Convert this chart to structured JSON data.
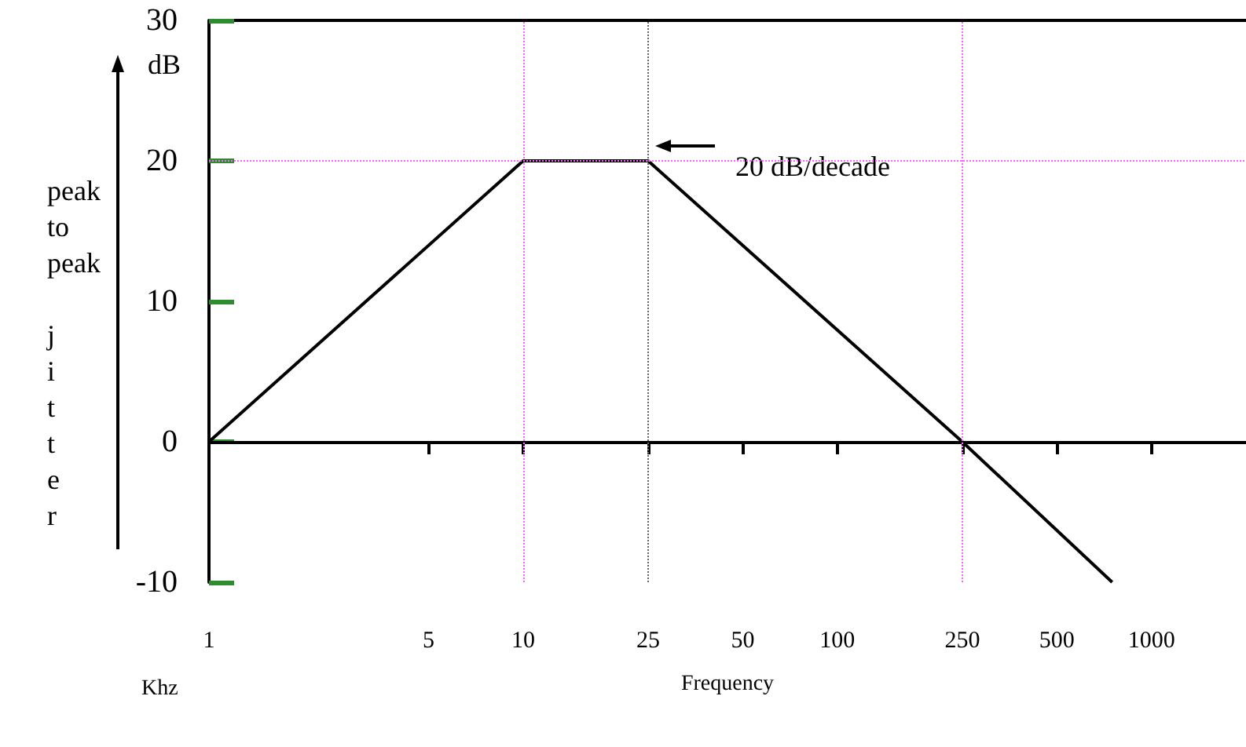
{
  "chart_data": {
    "type": "line",
    "xlabel": "Frequency",
    "ylabel": "peak to peak jitter",
    "annotations": [
      "20 dB/decade",
      "dB",
      "Khz"
    ],
    "x": [
      1,
      10,
      25,
      250,
      750
    ],
    "series": [
      {
        "color": "#000000",
        "values": [
          0,
          20,
          20,
          0,
          -10
        ]
      }
    ],
    "log": "x",
    "xlim": [
      1,
      2000
    ],
    "xticks": [
      1,
      5,
      10,
      25,
      50,
      100,
      250,
      500,
      1000
    ],
    "ylim": [
      -10,
      30
    ],
    "yticks": [
      -10,
      0,
      10,
      20,
      30
    ],
    "ref_lines": [
      {
        "axis": "y",
        "value": 0,
        "color": "#000000",
        "line_style": "solid"
      },
      {
        "axis": "y",
        "value": 20,
        "color": "#ff66ff",
        "line_style": "dotted"
      },
      {
        "axis": "x",
        "value": 10,
        "color": "#ff66ff",
        "line_style": "dotted"
      },
      {
        "axis": "x",
        "value": 25,
        "color": "#666666",
        "line_style": "dotted"
      },
      {
        "axis": "x",
        "value": 250,
        "color": "#ff66ff",
        "line_style": "dotted"
      }
    ],
    "grid": false,
    "marker": "none",
    "line_style": "solid"
  }
}
